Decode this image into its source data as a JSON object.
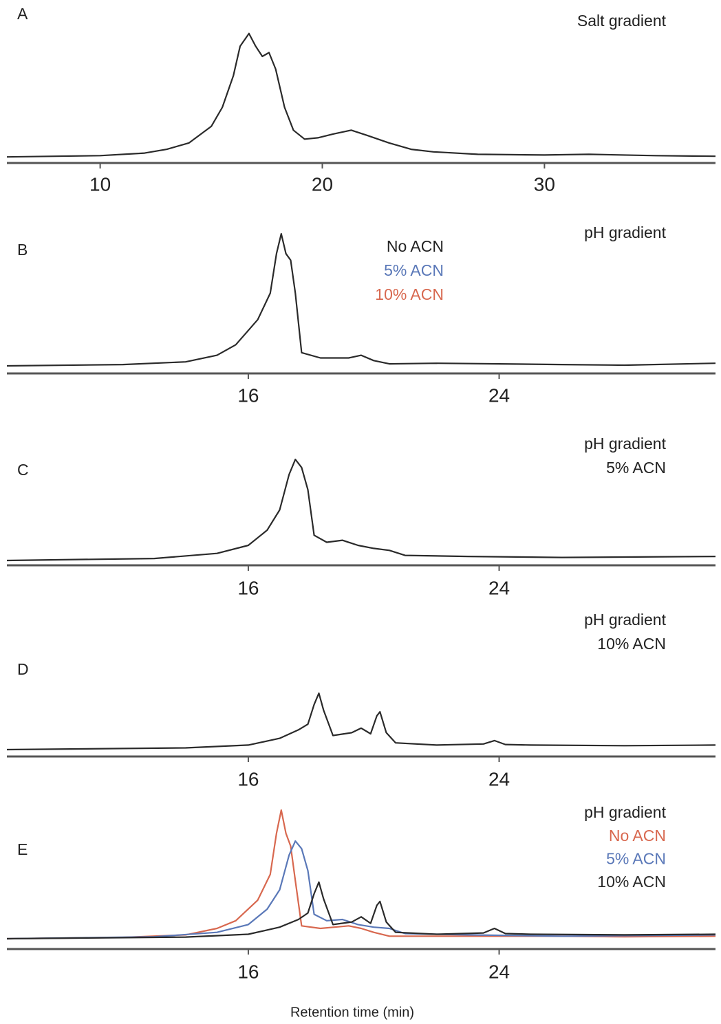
{
  "chart_data": [
    {
      "type": "line",
      "panel_label": "A",
      "title": "Salt gradient",
      "x": [
        5.8,
        8,
        10,
        12,
        13,
        14,
        15,
        15.5,
        16,
        16.3,
        16.7,
        17.0,
        17.3,
        17.6,
        17.9,
        18.3,
        18.7,
        19.2,
        19.8,
        20.5,
        21.3,
        22,
        23,
        24,
        25,
        27,
        30,
        32,
        35,
        37.7
      ],
      "values": [
        1,
        1.5,
        2,
        4,
        7,
        12,
        25,
        40,
        65,
        88,
        98,
        88,
        80,
        83,
        70,
        40,
        22,
        15,
        16,
        19,
        22,
        18,
        12,
        7,
        5,
        3,
        2.5,
        3,
        2,
        1.5
      ],
      "color": "#2a2a2a",
      "xlim": [
        5.8,
        37.7
      ],
      "xticks": [
        10,
        20,
        30
      ],
      "ylim": [
        0,
        100
      ]
    },
    {
      "type": "line",
      "panel_label": "B",
      "title": "pH gradient",
      "legend_labels": [
        {
          "text": "No ACN",
          "color": "#222222"
        },
        {
          "text": "5% ACN",
          "color": "#5a78b8"
        },
        {
          "text": "10% ACN",
          "color": "#d8684f"
        }
      ],
      "x": [
        8.3,
        12,
        14,
        15,
        15.6,
        16.3,
        16.7,
        16.9,
        17.05,
        17.2,
        17.35,
        17.5,
        17.7,
        18.3,
        19.2,
        19.6,
        20,
        20.5,
        22,
        24,
        26,
        28,
        30.9
      ],
      "values": [
        0,
        1,
        3,
        8,
        16,
        35,
        55,
        85,
        100,
        85,
        80,
        55,
        10,
        6,
        6,
        8,
        4,
        1.5,
        2,
        1.5,
        1,
        0.5,
        2
      ],
      "color": "#2a2a2a",
      "xlim": [
        8.3,
        30.9
      ],
      "xticks": [
        16,
        24
      ],
      "ylim": [
        0,
        100
      ]
    },
    {
      "type": "line",
      "panel_label": "C",
      "title": "pH gradient",
      "subtitle": "5% ACN",
      "x": [
        8.3,
        13,
        15,
        16,
        16.6,
        17,
        17.3,
        17.5,
        17.7,
        17.9,
        18.1,
        18.5,
        19,
        19.5,
        20,
        20.5,
        21,
        23,
        26,
        30.9
      ],
      "values": [
        0,
        2,
        7,
        15,
        30,
        50,
        85,
        100,
        92,
        70,
        25,
        18,
        20,
        15,
        12,
        10,
        5,
        4,
        3,
        4
      ],
      "color": "#2a2a2a",
      "xlim": [
        8.3,
        30.9
      ],
      "xticks": [
        16,
        24
      ],
      "ylim": [
        0,
        100
      ]
    },
    {
      "type": "line",
      "panel_label": "D",
      "title": "pH gradient",
      "subtitle": "10% ACN",
      "x": [
        8.3,
        14,
        16,
        17,
        17.6,
        17.9,
        18.1,
        18.25,
        18.4,
        18.7,
        19.3,
        19.6,
        19.9,
        20.1,
        20.2,
        20.4,
        20.7,
        22,
        23.5,
        23.85,
        24.2,
        25,
        28,
        30.9
      ],
      "values": [
        0,
        3,
        8,
        20,
        35,
        45,
        80,
        100,
        70,
        25,
        30,
        38,
        28,
        60,
        67,
        30,
        12,
        8,
        10,
        16,
        9,
        8,
        7,
        8
      ],
      "color": "#2a2a2a",
      "xlim": [
        8.3,
        30.9
      ],
      "xticks": [
        16,
        24
      ],
      "ylim": [
        0,
        100
      ]
    },
    {
      "type": "line",
      "panel_label": "E",
      "title": "pH gradient",
      "xlabel": "Retention time (min)",
      "series": [
        {
          "name": "No ACN",
          "color": "#d8684f",
          "x": [
            8.3,
            12,
            14,
            15,
            15.6,
            16.3,
            16.7,
            16.9,
            17.05,
            17.2,
            17.35,
            17.5,
            17.7,
            18.3,
            19.2,
            19.6,
            20,
            20.5,
            22,
            24,
            26,
            28,
            30.9
          ],
          "values": [
            0,
            1,
            3,
            8,
            14,
            30,
            50,
            82,
            100,
            82,
            72,
            45,
            10,
            8,
            10,
            8,
            5,
            2,
            2,
            2,
            2,
            1.5,
            2
          ]
        },
        {
          "name": "5% ACN",
          "color": "#5a78b8",
          "x": [
            8.3,
            13,
            15,
            16,
            16.6,
            17,
            17.3,
            17.5,
            17.7,
            17.9,
            18.1,
            18.5,
            19,
            19.5,
            20,
            20.5,
            21,
            23,
            26,
            30.9
          ],
          "values": [
            0,
            1.5,
            5,
            11,
            23,
            38,
            65,
            76,
            70,
            53,
            19,
            14,
            15,
            11,
            9,
            8,
            4,
            3,
            2,
            3
          ]
        },
        {
          "name": "10% ACN",
          "color": "#2a2a2a",
          "x": [
            8.3,
            14,
            16,
            17,
            17.6,
            17.9,
            18.1,
            18.25,
            18.4,
            18.7,
            19.3,
            19.6,
            19.9,
            20.1,
            20.2,
            20.4,
            20.7,
            22,
            23.5,
            23.85,
            24.2,
            25,
            28,
            30.9
          ],
          "values": [
            0,
            1.3,
            3.5,
            9,
            15,
            20,
            35,
            44,
            31,
            11,
            13,
            17,
            12,
            26,
            29,
            13,
            5,
            3.5,
            4.5,
            8,
            4,
            3.5,
            3,
            3.5
          ]
        }
      ],
      "xlim": [
        8.3,
        30.9
      ],
      "xticks": [
        16,
        24
      ],
      "ylim": [
        0,
        100
      ]
    }
  ]
}
